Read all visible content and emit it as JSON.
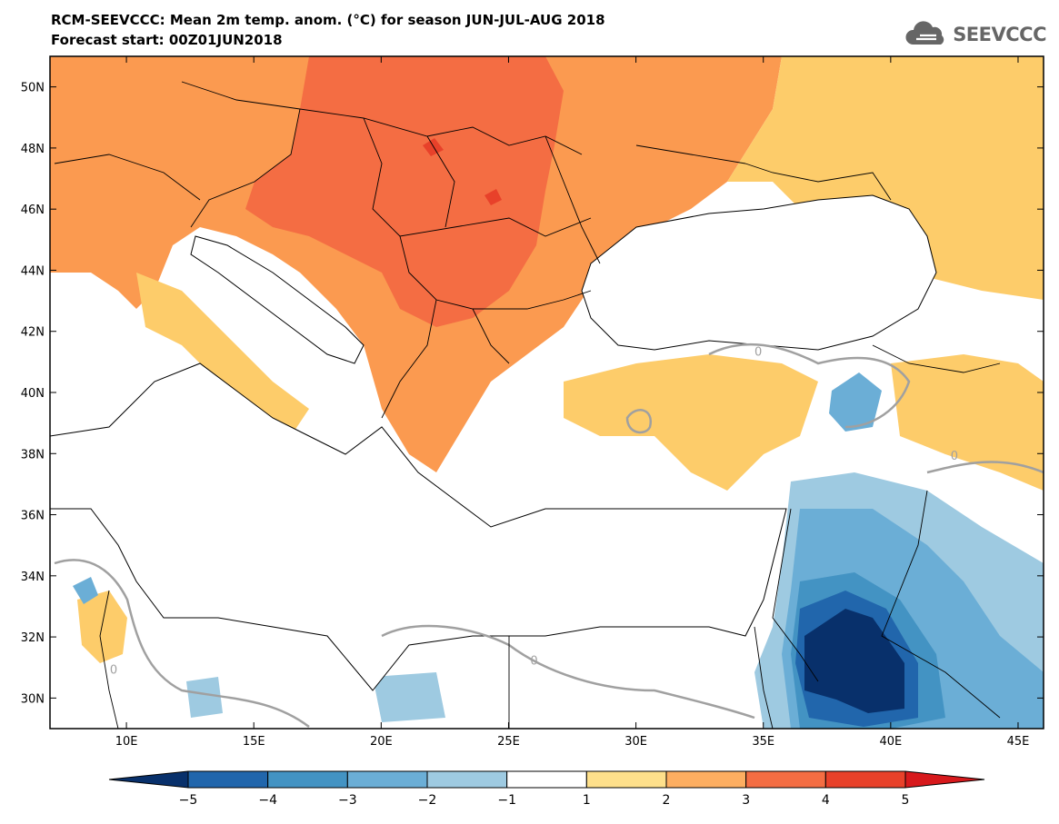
{
  "title": {
    "line1": "RCM-SEEVCCC: Mean 2m temp. anom. (°C) for season JUN-JUL-AUG 2018",
    "line2": "Forecast start: 00Z01JUN2018"
  },
  "logo": {
    "text": "SEEVCCC",
    "icon": "cloud-logo-icon",
    "color": "#666666"
  },
  "map": {
    "lon_range": [
      7,
      46
    ],
    "lat_range": [
      29,
      51
    ],
    "lat_ticks": [
      {
        "value": 50,
        "label": "50N"
      },
      {
        "value": 48,
        "label": "48N"
      },
      {
        "value": 46,
        "label": "46N"
      },
      {
        "value": 44,
        "label": "44N"
      },
      {
        "value": 42,
        "label": "42N"
      },
      {
        "value": 40,
        "label": "40N"
      },
      {
        "value": 38,
        "label": "38N"
      },
      {
        "value": 36,
        "label": "36N"
      },
      {
        "value": 34,
        "label": "34N"
      },
      {
        "value": 32,
        "label": "32N"
      },
      {
        "value": 30,
        "label": "30N"
      }
    ],
    "lon_ticks": [
      {
        "value": 10,
        "label": "10E"
      },
      {
        "value": 15,
        "label": "15E"
      },
      {
        "value": 20,
        "label": "20E"
      },
      {
        "value": 25,
        "label": "25E"
      },
      {
        "value": 30,
        "label": "30E"
      },
      {
        "value": 35,
        "label": "35E"
      },
      {
        "value": 40,
        "label": "40E"
      },
      {
        "value": 45,
        "label": "45E"
      }
    ],
    "contour_labels": [
      {
        "text": "0",
        "lon": 34.8,
        "lat": 41.2
      },
      {
        "text": "0",
        "lon": 9.5,
        "lat": 30.8
      },
      {
        "text": "0",
        "lon": 26.0,
        "lat": 31.1
      },
      {
        "text": "0",
        "lon": 42.5,
        "lat": 37.8
      }
    ]
  },
  "colorbar": {
    "levels": [
      "−5",
      "−4",
      "−3",
      "−2",
      "−1",
      "1",
      "2",
      "3",
      "4",
      "5"
    ],
    "colors": [
      "#08306b",
      "#2166ac",
      "#4393c3",
      "#6baed6",
      "#9ecae1",
      "#ffffff",
      "#fee08b",
      "#fdae61",
      "#f46d43",
      "#e8412a",
      "#d7191c"
    ]
  },
  "colors": {
    "anom_gt4": "#e8412a",
    "anom_3_4": "#f46d43",
    "anom_2_3": "#fb9a50",
    "anom_1_2": "#fdcc6a",
    "anom_neg1_neg2": "#9ecae1",
    "anom_neg2_neg3": "#6baed6",
    "anom_neg3_neg4": "#4393c3",
    "anom_neg4_neg5": "#2166ac",
    "anom_lt_neg5": "#08306b",
    "contour_zero": "#a0a0a0"
  }
}
